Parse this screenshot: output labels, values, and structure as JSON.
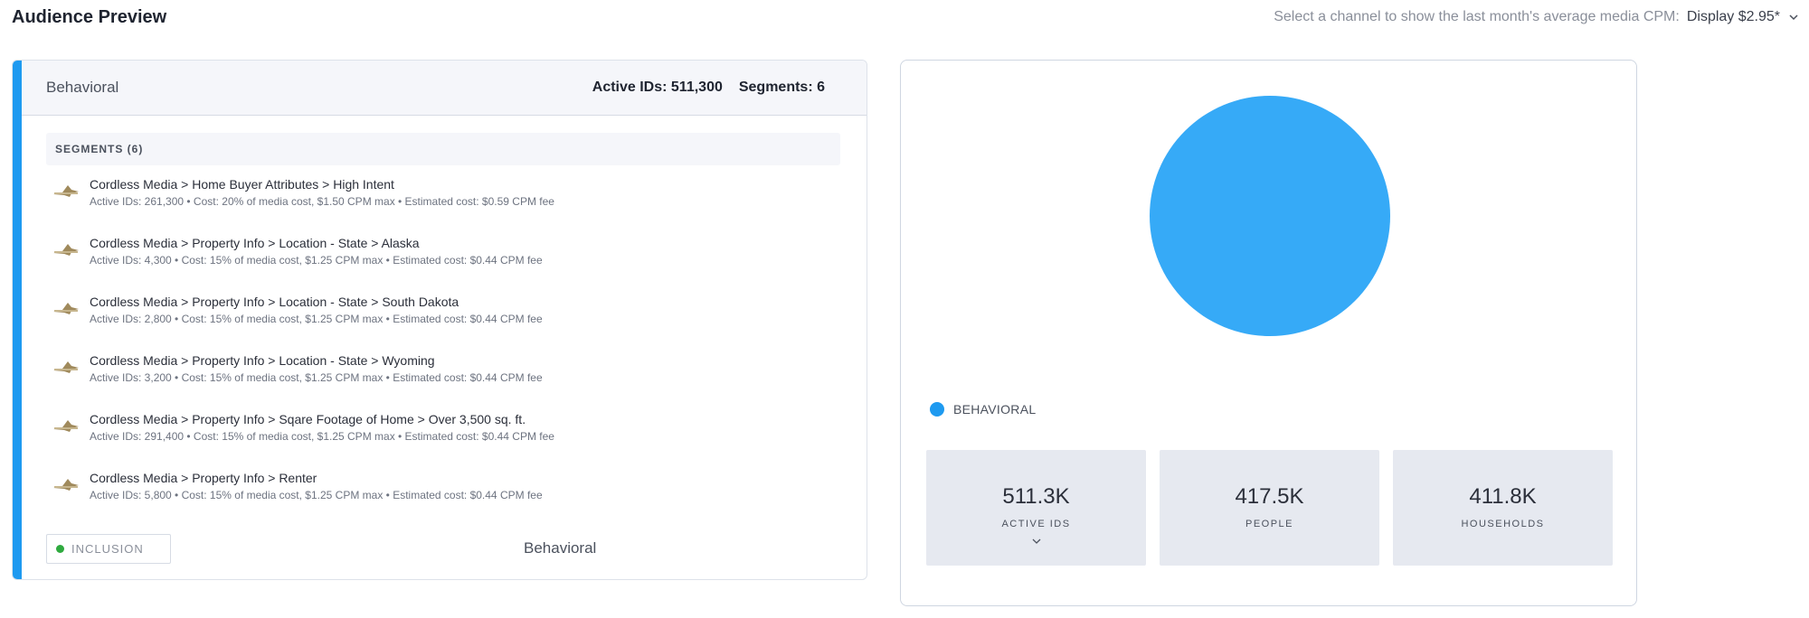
{
  "header": {
    "title": "Audience Preview",
    "cpm_prompt": "Select a channel to show the last month's average media CPM:",
    "cpm_value": "Display $2.95*"
  },
  "group": {
    "name": "Behavioral",
    "active_ids": "Active IDs: 511,300",
    "segments_count": "Segments: 6",
    "segments_header": "SEGMENTS (6)",
    "segments": [
      {
        "title": "Cordless Media > Home Buyer Attributes > High Intent",
        "meta": "Active IDs: 261,300  •  Cost: 20% of media cost, $1.50 CPM max  •  Estimated cost: $0.59 CPM fee"
      },
      {
        "title": "Cordless Media > Property Info > Location - State > Alaska",
        "meta": "Active IDs: 4,300  •  Cost: 15% of media cost, $1.25 CPM max  •  Estimated cost: $0.44 CPM fee"
      },
      {
        "title": "Cordless Media > Property Info > Location - State > South Dakota",
        "meta": "Active IDs: 2,800  •  Cost: 15% of media cost, $1.25 CPM max  •  Estimated cost: $0.44 CPM fee"
      },
      {
        "title": "Cordless Media > Property Info > Location - State > Wyoming",
        "meta": "Active IDs: 3,200  •  Cost: 15% of media cost, $1.25 CPM max  •  Estimated cost: $0.44 CPM fee"
      },
      {
        "title": "Cordless Media > Property Info > Sqare Footage of Home > Over 3,500 sq. ft.",
        "meta": "Active IDs: 291,400  •  Cost: 15% of media cost, $1.25 CPM max  •  Estimated cost: $0.44 CPM fee"
      },
      {
        "title": "Cordless Media > Property Info > Renter",
        "meta": "Active IDs: 5,800  •  Cost: 15% of media cost, $1.25 CPM max  •  Estimated cost: $0.44 CPM fee"
      }
    ],
    "inclusion_label": "INCLUSION",
    "footer_label": "Behavioral"
  },
  "summary": {
    "legend_label": "BEHAVIORAL",
    "legend_color": "#1e9af0",
    "pie_color": "#36aaf7",
    "tiles": [
      {
        "value": "511.3K",
        "label": "ACTIVE IDS"
      },
      {
        "value": "417.5K",
        "label": "PEOPLE"
      },
      {
        "value": "411.8K",
        "label": "HOUSEHOLDS"
      }
    ]
  },
  "chart_data": {
    "type": "pie",
    "categories": [
      "BEHAVIORAL"
    ],
    "values": [
      100
    ],
    "title": "",
    "legend": "bottom-left"
  }
}
